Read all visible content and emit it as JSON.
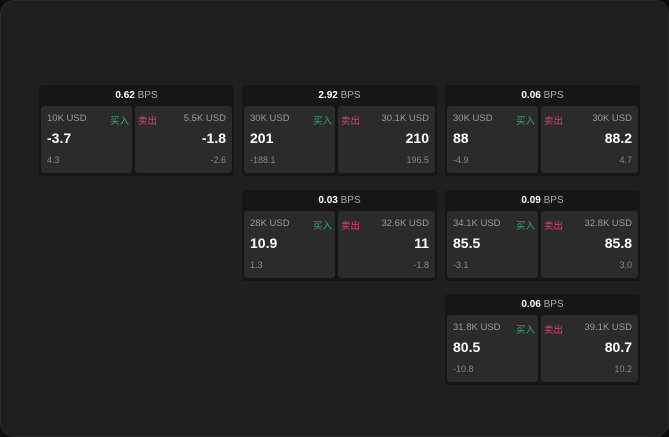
{
  "unit": "BPS",
  "buy_label": "买入",
  "sell_label": "卖出",
  "colors": {
    "buy": "#2fae5f",
    "sell": "#e0416c"
  },
  "cards": [
    {
      "spread": "0.62",
      "buy": {
        "size": "10K USD",
        "price": "-3.7",
        "change": "4.3"
      },
      "sell": {
        "size": "5.5K USD",
        "price": "-1.8",
        "change": "-2.6"
      }
    },
    {
      "spread": "2.92",
      "buy": {
        "size": "30K USD",
        "price": "201",
        "change": "-188.1"
      },
      "sell": {
        "size": "30.1K USD",
        "price": "210",
        "change": "196.5"
      }
    },
    {
      "spread": "0.06",
      "buy": {
        "size": "30K USD",
        "price": "88",
        "change": "-4.9"
      },
      "sell": {
        "size": "30K USD",
        "price": "88.2",
        "change": "4.7"
      }
    },
    {
      "spread": "0.03",
      "buy": {
        "size": "28K USD",
        "price": "10.9",
        "change": "1.3"
      },
      "sell": {
        "size": "32.6K USD",
        "price": "11",
        "change": "-1.8"
      }
    },
    {
      "spread": "0.09",
      "buy": {
        "size": "34.1K USD",
        "price": "85.5",
        "change": "-3.1"
      },
      "sell": {
        "size": "32.8K USD",
        "price": "85.8",
        "change": "3.0"
      }
    },
    {
      "spread": "0.06",
      "buy": {
        "size": "31.8K USD",
        "price": "80.5",
        "change": "-10.8"
      },
      "sell": {
        "size": "39.1K USD",
        "price": "80.7",
        "change": "10.2"
      }
    }
  ]
}
